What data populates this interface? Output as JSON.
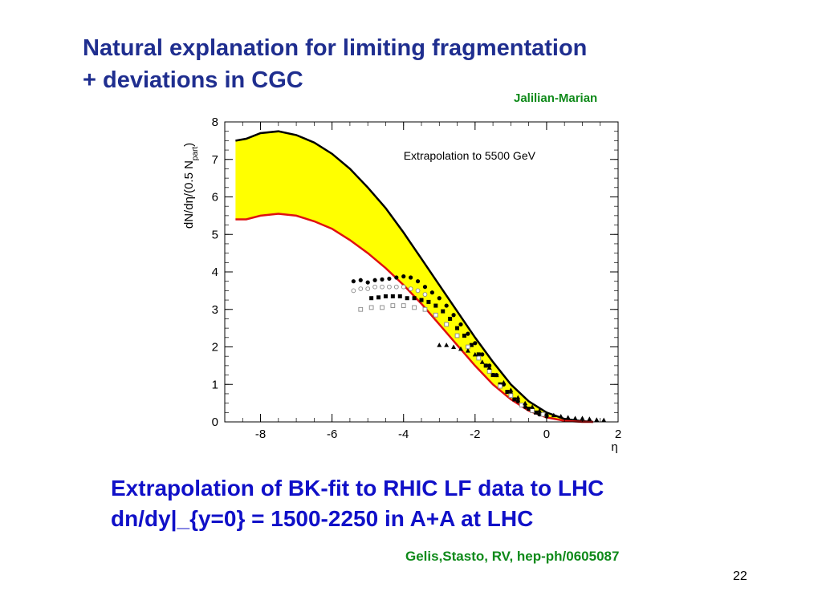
{
  "slide": {
    "title_line1": "Natural explanation for limiting fragmentation",
    "title_line2": "+ deviations in CGC",
    "credit_top": "Jalilian-Marian",
    "body_line1": "Extrapolation of BK-fit to RHIC LF data to LHC",
    "body_line2": "dn/dy|_{y=0} = 1500-2250 in A+A at LHC",
    "credit_bottom": "Gelis,Stasto, RV, hep-ph/0605087",
    "page_number": "22"
  },
  "colors": {
    "title": "#1f2e8f",
    "body": "#1010c8",
    "credit": "#0f8a1a",
    "band_fill": "#ffff00",
    "upper_curve": "#000000",
    "lower_curve": "#e01010"
  },
  "chart_data": {
    "type": "line",
    "ylabel_main": "dN/dη/(0.5 N",
    "ylabel_sub": "part",
    "ylabel_close": ")",
    "xlabel": "η",
    "annotation": "Extrapolation  to 5500 GeV",
    "xlim": [
      -9,
      2
    ],
    "ylim": [
      0,
      8
    ],
    "xticks": [
      -8,
      -6,
      -4,
      -2,
      0,
      2
    ],
    "yticks": [
      0,
      1,
      2,
      3,
      4,
      5,
      6,
      7,
      8
    ],
    "grid": false,
    "band": {
      "upper": {
        "x": [
          -8.7,
          -8.4,
          -8.0,
          -7.5,
          -7.0,
          -6.5,
          -6.0,
          -5.5,
          -5.0,
          -4.5,
          -4.0,
          -3.5,
          -3.0,
          -2.5,
          -2.0,
          -1.5,
          -1.0,
          -0.5,
          0.0,
          0.5,
          1.0,
          1.3
        ],
        "y": [
          7.5,
          7.55,
          7.7,
          7.75,
          7.65,
          7.45,
          7.15,
          6.75,
          6.25,
          5.7,
          5.05,
          4.35,
          3.65,
          2.95,
          2.25,
          1.6,
          1.0,
          0.55,
          0.25,
          0.08,
          0.02,
          0.0
        ]
      },
      "lower": {
        "x": [
          -8.7,
          -8.4,
          -8.0,
          -7.5,
          -7.0,
          -6.5,
          -6.0,
          -5.5,
          -5.0,
          -4.5,
          -4.0,
          -3.5,
          -3.0,
          -2.5,
          -2.0,
          -1.5,
          -1.0,
          -0.5,
          0.0,
          0.5,
          1.0,
          1.3
        ],
        "y": [
          5.4,
          5.4,
          5.5,
          5.55,
          5.5,
          5.35,
          5.15,
          4.85,
          4.5,
          4.1,
          3.65,
          3.15,
          2.6,
          2.05,
          1.5,
          1.0,
          0.6,
          0.3,
          0.12,
          0.03,
          0.0,
          0.0
        ]
      }
    },
    "series": [
      {
        "marker": "filled-circle",
        "x": [
          -5.4,
          -5.2,
          -5.0,
          -4.8,
          -4.6,
          -4.4,
          -4.2,
          -4.0,
          -3.8,
          -3.6,
          -3.4,
          -3.2,
          -3.0,
          -2.8,
          -2.6,
          -2.4,
          -2.2,
          -2.0,
          -1.8,
          -1.6,
          -1.4,
          -1.2,
          -1.0,
          -0.8,
          -0.6,
          -0.4,
          -0.2,
          0.0
        ],
        "y": [
          3.75,
          3.78,
          3.72,
          3.78,
          3.8,
          3.82,
          3.85,
          3.88,
          3.85,
          3.75,
          3.6,
          3.45,
          3.3,
          3.1,
          2.85,
          2.6,
          2.35,
          2.1,
          1.8,
          1.5,
          1.25,
          1.0,
          0.75,
          0.55,
          0.4,
          0.3,
          0.2,
          0.15
        ]
      },
      {
        "marker": "open-circle",
        "x": [
          -5.4,
          -5.2,
          -5.0,
          -4.8,
          -4.6,
          -4.4,
          -4.2,
          -4.0,
          -3.8,
          -3.6,
          -3.4
        ],
        "y": [
          3.5,
          3.55,
          3.55,
          3.6,
          3.6,
          3.6,
          3.6,
          3.6,
          3.55,
          3.5,
          3.4
        ]
      },
      {
        "marker": "filled-square",
        "x": [
          -4.9,
          -4.7,
          -4.5,
          -4.3,
          -4.1,
          -3.9,
          -3.7,
          -3.5,
          -3.3,
          -3.1,
          -2.9,
          -2.7,
          -2.5,
          -2.3,
          -2.1,
          -1.9,
          -1.7,
          -1.5,
          -1.3,
          -1.1,
          -0.9,
          -0.7,
          -0.5,
          -0.3,
          -0.1
        ],
        "y": [
          3.3,
          3.32,
          3.35,
          3.35,
          3.35,
          3.3,
          3.3,
          3.25,
          3.2,
          3.1,
          2.95,
          2.75,
          2.5,
          2.3,
          2.05,
          1.8,
          1.5,
          1.25,
          1.0,
          0.8,
          0.6,
          0.45,
          0.35,
          0.25,
          0.2
        ]
      },
      {
        "marker": "open-square",
        "x": [
          -5.2,
          -4.9,
          -4.6,
          -4.3,
          -4.0,
          -3.7,
          -3.4,
          -3.1,
          -2.8,
          -2.5,
          -2.2,
          -1.9,
          -1.6,
          -1.3,
          -1.0,
          -0.7,
          -0.4,
          -0.1
        ],
        "y": [
          3.0,
          3.05,
          3.05,
          3.1,
          3.1,
          3.05,
          3.0,
          2.85,
          2.6,
          2.3,
          2.0,
          1.7,
          1.35,
          0.95,
          0.7,
          0.45,
          0.3,
          0.2
        ]
      },
      {
        "marker": "filled-triangle",
        "x": [
          -3.0,
          -2.8,
          -2.6,
          -2.4,
          -2.2,
          -2.0,
          -1.8,
          -1.6,
          -1.4,
          -1.2,
          -1.0,
          -0.8,
          -0.6,
          -0.4,
          -0.2,
          0.0,
          0.2,
          0.4,
          0.6,
          0.8,
          1.0,
          1.2,
          1.4,
          1.6
        ],
        "y": [
          2.05,
          2.05,
          2.0,
          1.95,
          1.9,
          1.8,
          1.6,
          1.45,
          1.25,
          1.05,
          0.85,
          0.65,
          0.5,
          0.4,
          0.3,
          0.22,
          0.18,
          0.15,
          0.12,
          0.1,
          0.1,
          0.08,
          0.06,
          0.05
        ]
      }
    ]
  }
}
